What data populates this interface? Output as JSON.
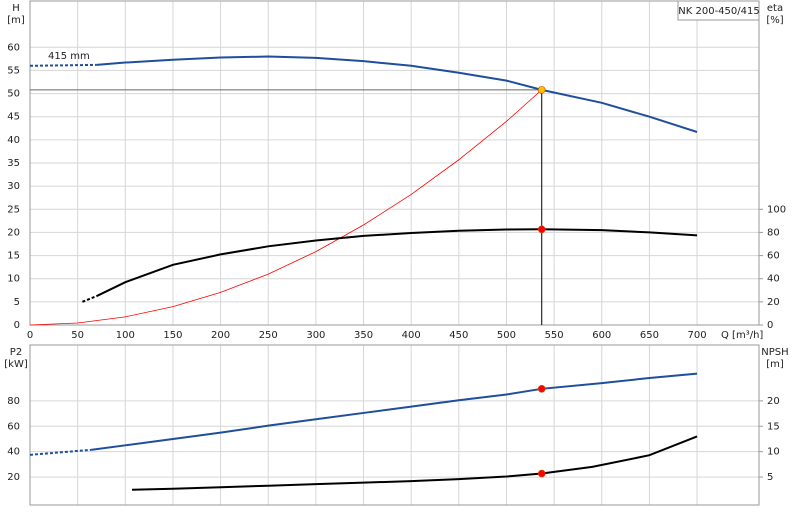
{
  "chart_data": [
    {
      "type": "line",
      "title": "NK 200-450/415",
      "annotation": "415 mm",
      "x_label": "Q [m³/h]",
      "y_label": [
        "H",
        "[m]"
      ],
      "y2_label": [
        "eta",
        "[%]"
      ],
      "xlim": [
        0,
        765
      ],
      "xticks": [
        0,
        50,
        100,
        150,
        200,
        250,
        300,
        350,
        400,
        450,
        500,
        550,
        600,
        650,
        700
      ],
      "ylim": [
        0,
        70
      ],
      "yticks": [
        0,
        5,
        10,
        15,
        20,
        25,
        30,
        35,
        40,
        45,
        50,
        55,
        60
      ],
      "y2lim": [
        0,
        280
      ],
      "y2ticks": [
        0,
        20,
        40,
        60,
        80,
        100
      ],
      "grid": true,
      "series": [
        {
          "color": "#1f4e9c",
          "dashed": true,
          "x": [
            0,
            70
          ],
          "values": [
            56,
            56.2
          ]
        },
        {
          "color": "#1f4e9c",
          "x": [
            70,
            100,
            150,
            200,
            250,
            300,
            350,
            400,
            450,
            500,
            537,
            600,
            650,
            700
          ],
          "values": [
            56.2,
            56.7,
            57.3,
            57.8,
            58,
            57.7,
            57,
            56,
            54.5,
            52.8,
            50.8,
            48,
            45,
            41.7
          ]
        },
        {
          "color": "#ff0000",
          "thin": true,
          "x": [
            0,
            50,
            100,
            150,
            200,
            250,
            300,
            350,
            400,
            450,
            500,
            537
          ],
          "values": [
            0,
            0.44,
            1.76,
            3.96,
            7.05,
            11,
            15.85,
            21.6,
            28.2,
            35.7,
            44,
            50.8
          ]
        },
        {
          "color": "#000000",
          "dashed": true,
          "axis": "y2",
          "x": [
            55,
            70
          ],
          "values": [
            20,
            25
          ]
        },
        {
          "color": "#000000",
          "axis": "y2",
          "x": [
            70,
            100,
            150,
            200,
            250,
            300,
            350,
            400,
            450,
            500,
            537,
            600,
            650,
            700
          ],
          "values": [
            25,
            37,
            52,
            61,
            68,
            73,
            77,
            79.5,
            81.5,
            82.5,
            82.7,
            82,
            80,
            77.5
          ]
        }
      ],
      "points": [
        {
          "x": 537,
          "y": 50.8,
          "color": "#ffc000",
          "guides": true
        },
        {
          "x": 537,
          "y": 82.7,
          "color": "#ff0000",
          "axis": "y2"
        }
      ]
    },
    {
      "type": "line",
      "y_label": [
        "P2",
        "[kW]"
      ],
      "y2_label": [
        "NPSH",
        "[m]"
      ],
      "xlim": [
        0,
        765
      ],
      "xticks": [
        0,
        50,
        100,
        150,
        200,
        250,
        300,
        350,
        400,
        450,
        500,
        550,
        600,
        650,
        700
      ],
      "xtick_labels": false,
      "ylim": [
        -2,
        124
      ],
      "yticks": [
        20,
        40,
        60,
        80
      ],
      "y2lim": [
        -0.5,
        31
      ],
      "y2ticks": [
        5,
        10,
        15,
        20
      ],
      "grid": true,
      "series": [
        {
          "color": "#1f4e9c",
          "dashed": true,
          "x": [
            0,
            65
          ],
          "values": [
            37.5,
            41.5
          ]
        },
        {
          "color": "#1f4e9c",
          "x": [
            65,
            100,
            150,
            200,
            250,
            300,
            350,
            400,
            450,
            500,
            537,
            600,
            650,
            700
          ],
          "values": [
            41.5,
            45,
            50,
            55,
            60.5,
            65.5,
            70.5,
            75.5,
            80.5,
            85,
            89.5,
            94,
            98,
            101.5
          ]
        },
        {
          "color": "#000000",
          "axis": "y2",
          "x": [
            107,
            150,
            200,
            250,
            300,
            350,
            400,
            450,
            500,
            537,
            590,
            650,
            700
          ],
          "values": [
            2.5,
            2.7,
            3,
            3.3,
            3.6,
            3.9,
            4.2,
            4.6,
            5.1,
            5.7,
            7,
            9.3,
            13
          ]
        }
      ],
      "points": [
        {
          "x": 537,
          "y": 89.5,
          "color": "#ff0000"
        },
        {
          "x": 537,
          "y": 5.7,
          "color": "#ff0000",
          "axis": "y2"
        }
      ]
    }
  ]
}
